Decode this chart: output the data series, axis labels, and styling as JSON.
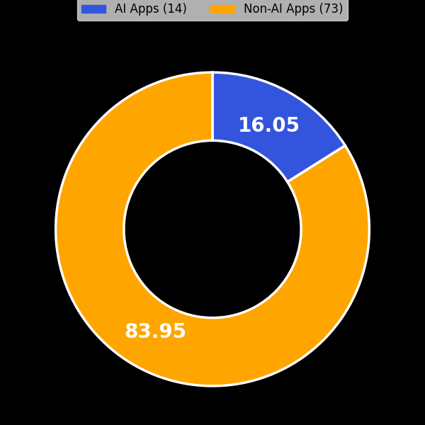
{
  "labels": [
    "AI Apps (14)",
    "Non-AI Apps (73)"
  ],
  "values": [
    16.05,
    83.95
  ],
  "colors": [
    "#3355DD",
    "#FFA500"
  ],
  "text_labels": [
    "16.05",
    "83.95"
  ],
  "text_color": "white",
  "text_fontsize": 20,
  "donut_width": 0.5,
  "background_color": "#000000",
  "legend_fontsize": 12,
  "legend_facecolor": "#DDDDDD",
  "edge_color": "white",
  "edge_linewidth": 2.5
}
